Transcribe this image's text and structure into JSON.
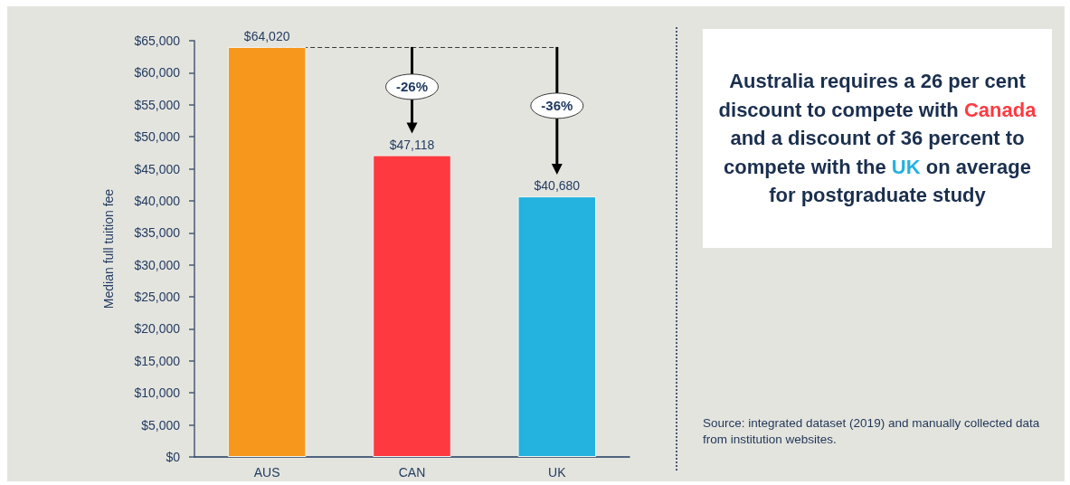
{
  "chart_data": [
    {
      "type": "bar",
      "categories": [
        "AUS",
        "CAN",
        "UK"
      ],
      "values": [
        64020,
        47118,
        40680
      ],
      "colors": [
        "#f7981d",
        "#fe3a40",
        "#24b2df"
      ],
      "ylabel": "Median full tuition fee",
      "ylim": [
        0,
        65000
      ],
      "yticks": [
        {
          "value": 0,
          "label": "$0"
        },
        {
          "value": 5000,
          "label": "$5,000"
        },
        {
          "value": 10000,
          "label": "$10,000"
        },
        {
          "value": 15000,
          "label": "$15,000"
        },
        {
          "value": 20000,
          "label": "$20,000"
        },
        {
          "value": 25000,
          "label": "$25,000"
        },
        {
          "value": 30000,
          "label": "$30,000"
        },
        {
          "value": 35000,
          "label": "$35,000"
        },
        {
          "value": 40000,
          "label": "$40,000"
        },
        {
          "value": 45000,
          "label": "$45,000"
        },
        {
          "value": 50000,
          "label": "$50,000"
        },
        {
          "value": 55000,
          "label": "$55,000"
        },
        {
          "value": 60000,
          "label": "$60,000"
        },
        {
          "value": 65000,
          "label": "$65,000"
        }
      ],
      "value_labels": [
        "$64,020",
        "$47,118",
        "$40,680"
      ],
      "ref_lines": [
        {
          "axis": "y",
          "value": 64020,
          "line_style": "dashed",
          "color": "#3a3a3a"
        }
      ],
      "annotations": [
        "-26%",
        "-36%"
      ]
    },
    {
      "type": "other",
      "annotations": [
        "Australia requires a 26 per cent discount to compete with ",
        "Canada",
        " and a discount of 36 percent to compete with the ",
        "UK",
        " on average for postgraduate study"
      ],
      "colors": [
        null,
        "#fe3a40",
        null,
        "#24b2df",
        null
      ]
    },
    {
      "type": "other",
      "annotations": [
        "Source: integrated dataset (2019) and manually collected data from institution websites."
      ]
    }
  ]
}
